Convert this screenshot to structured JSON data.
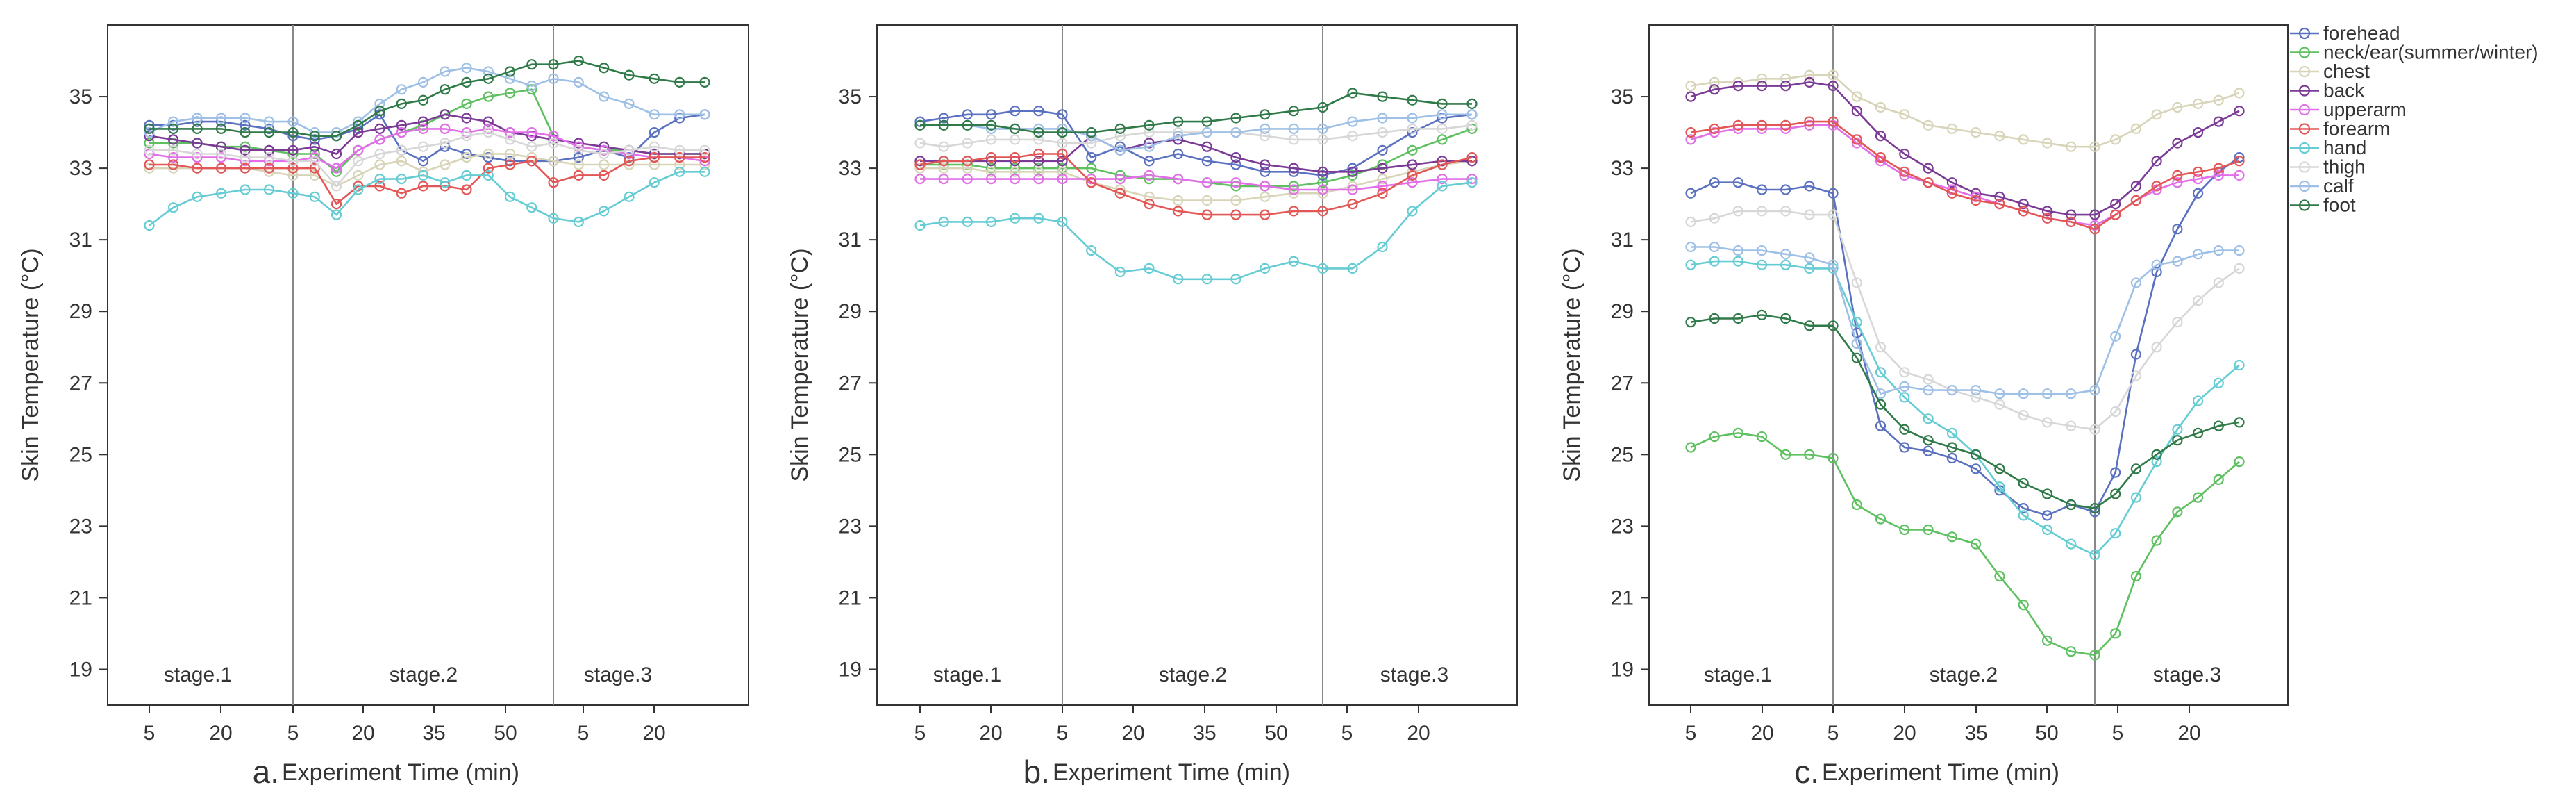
{
  "chart_data": [
    {
      "type": "line",
      "panel": "a.",
      "xlabel": "Experiment Time (min)",
      "ylabel": "Skin Temperature (°C)",
      "ylim": [
        18,
        37
      ],
      "yticks": [
        "19",
        "21",
        "23",
        "25",
        "27",
        "29",
        "31",
        "33",
        "35"
      ],
      "xticks": [
        "5",
        "20",
        "5",
        "20",
        "35",
        "50",
        "5",
        "20"
      ],
      "stages": [
        "stage.1",
        "stage.2",
        "stage.3"
      ],
      "series": [
        {
          "name": "forehead",
          "values": [
            34.2,
            34.2,
            34.3,
            34.3,
            34.2,
            34.1,
            33.9,
            33.8,
            33.9,
            34.1,
            34.5,
            33.5,
            33.2,
            33.6,
            33.4,
            33.3,
            33.2,
            33.2,
            33.2,
            33.3,
            33.5,
            33.3,
            34.0,
            34.4,
            34.5
          ]
        },
        {
          "name": "neck/ear(summer/winter)",
          "values": [
            33.7,
            33.7,
            33.7,
            33.6,
            33.6,
            33.5,
            33.4,
            33.4,
            32.9,
            33.5,
            33.8,
            34.0,
            34.2,
            34.5,
            34.8,
            35.0,
            35.1,
            35.2,
            33.9,
            33.6,
            33.5,
            33.5,
            33.4,
            33.4,
            33.4
          ]
        },
        {
          "name": "chest",
          "values": [
            33.0,
            33.0,
            33.0,
            33.0,
            33.0,
            32.9,
            32.8,
            32.8,
            32.5,
            32.8,
            33.1,
            33.2,
            32.9,
            33.1,
            33.3,
            33.4,
            33.4,
            33.3,
            33.2,
            33.1,
            33.1,
            33.1,
            33.1,
            33.1,
            33.1
          ]
        },
        {
          "name": "back",
          "values": [
            33.9,
            33.8,
            33.7,
            33.6,
            33.5,
            33.5,
            33.5,
            33.6,
            33.4,
            34.0,
            34.1,
            34.2,
            34.3,
            34.5,
            34.4,
            34.3,
            34.0,
            33.9,
            33.8,
            33.7,
            33.6,
            33.5,
            33.4,
            33.4,
            33.4
          ]
        },
        {
          "name": "upperarm",
          "values": [
            33.4,
            33.3,
            33.3,
            33.3,
            33.2,
            33.2,
            33.2,
            33.3,
            33.0,
            33.5,
            33.8,
            34.0,
            34.1,
            34.1,
            34.0,
            34.1,
            34.0,
            34.0,
            33.9,
            33.6,
            33.5,
            33.4,
            33.3,
            33.3,
            33.2
          ]
        },
        {
          "name": "forearm",
          "values": [
            33.1,
            33.1,
            33.0,
            33.0,
            33.0,
            33.0,
            33.0,
            33.0,
            32.0,
            32.5,
            32.5,
            32.3,
            32.5,
            32.5,
            32.4,
            33.0,
            33.1,
            33.2,
            32.6,
            32.8,
            32.8,
            33.2,
            33.3,
            33.3,
            33.3
          ]
        },
        {
          "name": "hand",
          "values": [
            31.4,
            31.9,
            32.2,
            32.3,
            32.4,
            32.4,
            32.3,
            32.2,
            31.7,
            32.4,
            32.7,
            32.7,
            32.8,
            32.6,
            32.8,
            32.8,
            32.2,
            31.9,
            31.6,
            31.5,
            31.8,
            32.2,
            32.6,
            32.9,
            32.9
          ]
        },
        {
          "name": "thigh",
          "values": [
            33.5,
            33.5,
            33.4,
            33.4,
            33.3,
            33.3,
            33.2,
            33.2,
            32.5,
            33.2,
            33.4,
            33.5,
            33.6,
            33.7,
            33.9,
            34.0,
            33.8,
            33.6,
            33.7,
            33.5,
            33.4,
            33.5,
            33.6,
            33.5,
            33.5
          ]
        },
        {
          "name": "calf",
          "values": [
            34.0,
            34.3,
            34.4,
            34.4,
            34.4,
            34.3,
            34.3,
            34.0,
            34.0,
            34.3,
            34.8,
            35.2,
            35.4,
            35.7,
            35.8,
            35.7,
            35.5,
            35.3,
            35.5,
            35.4,
            35.0,
            34.8,
            34.5,
            34.5,
            34.5
          ]
        },
        {
          "name": "foot",
          "values": [
            34.1,
            34.1,
            34.1,
            34.1,
            34.0,
            34.0,
            34.0,
            33.9,
            33.9,
            34.2,
            34.6,
            34.8,
            34.9,
            35.2,
            35.4,
            35.5,
            35.7,
            35.9,
            35.9,
            36.0,
            35.8,
            35.6,
            35.5,
            35.4,
            35.4
          ]
        }
      ]
    },
    {
      "type": "line",
      "panel": "b.",
      "xlabel": "Experiment Time (min)",
      "ylabel": "Skin Temperature (°C)",
      "ylim": [
        18,
        37
      ],
      "yticks": [
        "19",
        "21",
        "23",
        "25",
        "27",
        "29",
        "31",
        "33",
        "35"
      ],
      "xticks": [
        "5",
        "20",
        "5",
        "20",
        "35",
        "50",
        "5",
        "20"
      ],
      "stages": [
        "stage.1",
        "stage.2",
        "stage.3"
      ],
      "series": [
        {
          "name": "forehead",
          "values": [
            34.3,
            34.4,
            34.5,
            34.5,
            34.6,
            34.6,
            34.5,
            33.3,
            33.6,
            33.2,
            33.4,
            33.2,
            33.1,
            32.9,
            32.9,
            32.8,
            33.0,
            33.5,
            34.0,
            34.4,
            34.5
          ]
        },
        {
          "name": "neck/ear(summer/winter)",
          "values": [
            33.1,
            33.1,
            33.1,
            33.0,
            33.0,
            33.0,
            33.0,
            33.0,
            32.8,
            32.7,
            32.7,
            32.6,
            32.5,
            32.5,
            32.5,
            32.6,
            32.8,
            33.1,
            33.5,
            33.8,
            34.1
          ]
        },
        {
          "name": "chest",
          "values": [
            33.0,
            33.0,
            33.0,
            32.9,
            32.9,
            32.9,
            32.9,
            32.6,
            32.4,
            32.2,
            32.1,
            32.1,
            32.1,
            32.2,
            32.3,
            32.3,
            32.5,
            32.7,
            32.9,
            33.1,
            33.2
          ]
        },
        {
          "name": "back",
          "values": [
            33.2,
            33.2,
            33.2,
            33.2,
            33.2,
            33.2,
            33.2,
            33.9,
            33.5,
            33.7,
            33.8,
            33.6,
            33.3,
            33.1,
            33.0,
            32.9,
            32.9,
            33.0,
            33.1,
            33.2,
            33.2
          ]
        },
        {
          "name": "upperarm",
          "values": [
            32.7,
            32.7,
            32.7,
            32.7,
            32.7,
            32.7,
            32.7,
            32.7,
            32.7,
            32.8,
            32.7,
            32.6,
            32.6,
            32.5,
            32.4,
            32.4,
            32.4,
            32.5,
            32.6,
            32.7,
            32.7
          ]
        },
        {
          "name": "forearm",
          "values": [
            33.1,
            33.2,
            33.2,
            33.3,
            33.3,
            33.4,
            33.4,
            32.6,
            32.3,
            32.0,
            31.8,
            31.7,
            31.7,
            31.7,
            31.8,
            31.8,
            32.0,
            32.3,
            32.8,
            33.1,
            33.3
          ]
        },
        {
          "name": "hand",
          "values": [
            31.4,
            31.5,
            31.5,
            31.5,
            31.6,
            31.6,
            31.5,
            30.7,
            30.1,
            30.2,
            29.9,
            29.9,
            29.9,
            30.2,
            30.4,
            30.2,
            30.2,
            30.8,
            31.8,
            32.5,
            32.6
          ]
        },
        {
          "name": "thigh",
          "values": [
            33.7,
            33.6,
            33.7,
            33.8,
            33.8,
            33.8,
            33.7,
            33.7,
            33.9,
            34.0,
            34.0,
            34.0,
            34.0,
            33.9,
            33.8,
            33.8,
            33.9,
            34.0,
            34.1,
            34.1,
            34.2
          ]
        },
        {
          "name": "calf",
          "values": [
            34.2,
            34.2,
            34.2,
            34.1,
            34.1,
            34.1,
            34.1,
            33.9,
            33.5,
            33.6,
            33.9,
            34.0,
            34.0,
            34.1,
            34.1,
            34.1,
            34.3,
            34.4,
            34.4,
            34.5,
            34.5
          ]
        },
        {
          "name": "foot",
          "values": [
            34.2,
            34.2,
            34.2,
            34.2,
            34.1,
            34.0,
            34.0,
            34.0,
            34.1,
            34.2,
            34.3,
            34.3,
            34.4,
            34.5,
            34.6,
            34.7,
            35.1,
            35.0,
            34.9,
            34.8,
            34.8
          ]
        }
      ]
    },
    {
      "type": "line",
      "panel": "c.",
      "xlabel": "Experiment Time (min)",
      "ylabel": "Skin Temperature (°C)",
      "ylim": [
        18,
        37
      ],
      "yticks": [
        "19",
        "21",
        "23",
        "25",
        "27",
        "29",
        "31",
        "33",
        "35"
      ],
      "xticks": [
        "5",
        "20",
        "5",
        "20",
        "35",
        "50",
        "5",
        "20"
      ],
      "stages": [
        "stage.1",
        "stage.2",
        "stage.3"
      ],
      "legend_position": "top-right",
      "series": [
        {
          "name": "forehead",
          "values": [
            32.3,
            32.6,
            32.6,
            32.4,
            32.4,
            32.5,
            32.3,
            28.4,
            25.8,
            25.2,
            25.1,
            24.9,
            24.6,
            24.0,
            23.5,
            23.3,
            23.6,
            23.4,
            24.5,
            27.8,
            30.1,
            31.3,
            32.3,
            32.9,
            33.3
          ]
        },
        {
          "name": "neck/ear(summer/winter)",
          "values": [
            25.2,
            25.5,
            25.6,
            25.5,
            25.0,
            25.0,
            24.9,
            23.6,
            23.2,
            22.9,
            22.9,
            22.7,
            22.5,
            21.6,
            20.8,
            19.8,
            19.5,
            19.4,
            20.0,
            21.6,
            22.6,
            23.4,
            23.8,
            24.3,
            24.8
          ]
        },
        {
          "name": "chest",
          "values": [
            35.3,
            35.4,
            35.4,
            35.5,
            35.5,
            35.6,
            35.6,
            35.0,
            34.7,
            34.5,
            34.2,
            34.1,
            34.0,
            33.9,
            33.8,
            33.7,
            33.6,
            33.6,
            33.8,
            34.1,
            34.5,
            34.7,
            34.8,
            34.9,
            35.1
          ]
        },
        {
          "name": "back",
          "values": [
            35.0,
            35.2,
            35.3,
            35.3,
            35.3,
            35.4,
            35.3,
            34.6,
            33.9,
            33.4,
            33.0,
            32.6,
            32.3,
            32.2,
            32.0,
            31.8,
            31.7,
            31.7,
            32.0,
            32.5,
            33.2,
            33.7,
            34.0,
            34.3,
            34.6
          ]
        },
        {
          "name": "upperarm",
          "values": [
            33.8,
            34.0,
            34.1,
            34.1,
            34.1,
            34.2,
            34.2,
            33.7,
            33.2,
            32.8,
            32.6,
            32.4,
            32.2,
            32.0,
            31.8,
            31.6,
            31.5,
            31.4,
            31.7,
            32.1,
            32.4,
            32.6,
            32.7,
            32.8,
            32.8
          ]
        },
        {
          "name": "forearm",
          "values": [
            34.0,
            34.1,
            34.2,
            34.2,
            34.2,
            34.3,
            34.3,
            33.8,
            33.3,
            32.9,
            32.6,
            32.3,
            32.1,
            32.0,
            31.8,
            31.6,
            31.5,
            31.3,
            31.7,
            32.1,
            32.5,
            32.8,
            32.9,
            33.0,
            33.2
          ]
        },
        {
          "name": "hand",
          "values": [
            30.3,
            30.4,
            30.4,
            30.3,
            30.3,
            30.2,
            30.2,
            28.7,
            27.3,
            26.6,
            26.0,
            25.6,
            25.0,
            24.1,
            23.3,
            22.9,
            22.5,
            22.2,
            22.8,
            23.8,
            24.8,
            25.7,
            26.5,
            27.0,
            27.5
          ]
        },
        {
          "name": "thigh",
          "values": [
            31.5,
            31.6,
            31.8,
            31.8,
            31.8,
            31.7,
            31.7,
            29.8,
            28.0,
            27.3,
            27.1,
            26.8,
            26.6,
            26.4,
            26.1,
            25.9,
            25.8,
            25.7,
            26.2,
            27.2,
            28.0,
            28.7,
            29.3,
            29.8,
            30.2
          ]
        },
        {
          "name": "calf",
          "values": [
            30.8,
            30.8,
            30.7,
            30.7,
            30.6,
            30.5,
            30.3,
            28.1,
            26.7,
            26.9,
            26.8,
            26.8,
            26.8,
            26.7,
            26.7,
            26.7,
            26.7,
            26.8,
            28.3,
            29.8,
            30.3,
            30.4,
            30.6,
            30.7,
            30.7
          ]
        },
        {
          "name": "foot",
          "values": [
            28.7,
            28.8,
            28.8,
            28.9,
            28.8,
            28.6,
            28.6,
            27.7,
            26.4,
            25.7,
            25.4,
            25.2,
            25.0,
            24.6,
            24.2,
            23.9,
            23.6,
            23.5,
            23.9,
            24.6,
            25.0,
            25.4,
            25.6,
            25.8,
            25.9
          ]
        }
      ]
    }
  ],
  "colors": {
    "forehead": "#5a70c0",
    "neck/ear(summer/winter)": "#5ec060",
    "chest": "#d8d4b8",
    "back": "#7a3a96",
    "upperarm": "#e26ee8",
    "forearm": "#e35656",
    "hand": "#66ccd4",
    "thigh": "#d7d7d7",
    "calf": "#9ec0e6",
    "foot": "#2f7a48"
  }
}
